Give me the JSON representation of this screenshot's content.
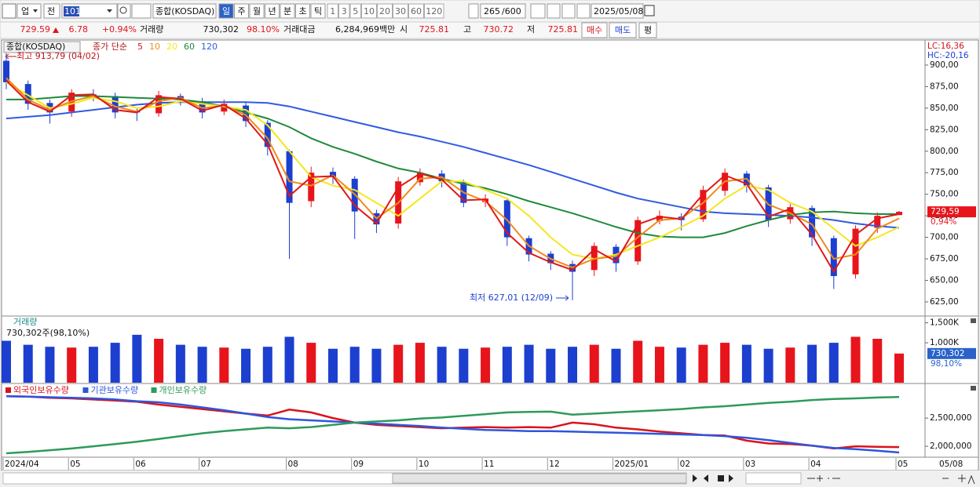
{
  "toolbar": {
    "market": "업",
    "prev": "전",
    "code": "101",
    "name": "종합(KOSDAQ)",
    "periods": [
      "일",
      "주",
      "월",
      "년",
      "분",
      "초",
      "틱"
    ],
    "intervals": [
      "1",
      "3",
      "5",
      "10",
      "20",
      "30",
      "60",
      "120"
    ],
    "count": "265",
    "max": "/600",
    "date": "2025/05/08"
  },
  "quote": {
    "price": "729.59",
    "change": "6.78",
    "pct": "+0.94%",
    "vol_label": "거래량",
    "volume": "730,302",
    "vol_ratio": "98.10%",
    "amount_label": "거래대금",
    "amount": "6,284,969백만",
    "open_label": "시",
    "open": "725.81",
    "high_label": "고",
    "high": "730.72",
    "low_label": "저",
    "low": "725.81",
    "buy": "매수",
    "sell": "매도",
    "avg": "평"
  },
  "chart_data": [
    {
      "type": "candlestick",
      "title": "종합(KOSDAQ)",
      "subtitle": "종가 단순",
      "categories": [
        "2024/04",
        null,
        null,
        "05",
        null,
        null,
        "06",
        null,
        null,
        "07",
        null,
        null,
        null,
        "08",
        null,
        null,
        "09",
        null,
        null,
        "10",
        null,
        null,
        "11",
        null,
        null,
        "12",
        null,
        null,
        "2025/01",
        null,
        null,
        "02",
        null,
        null,
        "03",
        null,
        null,
        "04",
        null,
        null,
        null,
        "05"
      ],
      "open": [
        905,
        878,
        856,
        846,
        866,
        864,
        846,
        844,
        864,
        858,
        846,
        853,
        833,
        800,
        742,
        776,
        768,
        728,
        716,
        764,
        774,
        764,
        741,
        743,
        699,
        681,
        669,
        662,
        689,
        672,
        719,
        724,
        721,
        754,
        774,
        758,
        721,
        734,
        699,
        657,
        711,
        725.81
      ],
      "high": [
        913.79,
        882,
        860,
        872,
        872,
        868,
        850,
        870,
        867,
        862,
        860,
        857,
        836,
        802,
        782,
        781,
        771,
        732,
        770,
        780,
        778,
        767,
        750,
        746,
        702,
        684,
        673,
        694,
        692,
        724,
        731,
        728,
        760,
        780,
        777,
        761,
        739,
        737,
        702,
        714,
        729,
        730.72
      ],
      "low": [
        872,
        848,
        832,
        840,
        858,
        838,
        835,
        840,
        853,
        838,
        842,
        828,
        795,
        675,
        735,
        762,
        698,
        705,
        710,
        760,
        758,
        735,
        735,
        690,
        672,
        662,
        627.01,
        655,
        660,
        668,
        715,
        708,
        718,
        748,
        752,
        712,
        716,
        690,
        640,
        652,
        705,
        725.81
      ],
      "close": [
        880,
        855,
        845,
        868,
        865,
        845,
        845,
        865,
        860,
        845,
        855,
        835,
        805,
        740,
        775,
        770,
        730,
        715,
        765,
        775,
        765,
        740,
        745,
        700,
        680,
        670,
        660,
        690,
        670,
        720,
        725,
        720,
        755,
        775,
        760,
        720,
        735,
        700,
        655,
        710,
        725,
        729.59
      ],
      "up_color": "#e8141b",
      "down_color": "#1c3fd0",
      "series": [
        {
          "name": "5",
          "color": "#e01818",
          "values": [
            882,
            857,
            846,
            865,
            866,
            848,
            845,
            863,
            861,
            847,
            854,
            838,
            808,
            748,
            770,
            771,
            737,
            716,
            758,
            774,
            767,
            743,
            744,
            705,
            682,
            671,
            662,
            686,
            672,
            715,
            724,
            721,
            750,
            772,
            762,
            724,
            733,
            703,
            660,
            703,
            722,
            727
          ]
        },
        {
          "name": "10",
          "color": "#f08a1c",
          "values": [
            885,
            860,
            848,
            858,
            864,
            852,
            846,
            858,
            862,
            850,
            853,
            842,
            815,
            765,
            760,
            772,
            750,
            722,
            740,
            768,
            770,
            752,
            742,
            720,
            690,
            675,
            665,
            675,
            678,
            700,
            720,
            722,
            740,
            765,
            768,
            738,
            728,
            715,
            675,
            680,
            710,
            722
          ]
        },
        {
          "name": "20",
          "color": "#f5e61e",
          "values": [
            880,
            865,
            850,
            855,
            862,
            858,
            850,
            852,
            858,
            855,
            852,
            848,
            830,
            800,
            770,
            760,
            755,
            740,
            725,
            745,
            765,
            765,
            755,
            745,
            725,
            700,
            680,
            675,
            680,
            690,
            700,
            712,
            725,
            745,
            760,
            755,
            740,
            730,
            710,
            690,
            700,
            712
          ]
        },
        {
          "name": "60",
          "color": "#1f8a3a",
          "values": [
            860,
            860,
            862,
            864,
            864,
            863,
            862,
            861,
            860,
            857,
            852,
            845,
            838,
            828,
            815,
            805,
            797,
            788,
            780,
            775,
            768,
            762,
            757,
            750,
            742,
            735,
            728,
            720,
            712,
            705,
            701,
            700,
            700,
            705,
            713,
            720,
            726,
            729,
            730,
            728,
            727,
            727
          ]
        },
        {
          "name": "120",
          "color": "#2f5be0",
          "values": [
            838,
            840,
            842,
            845,
            848,
            851,
            854,
            856,
            857,
            857,
            857,
            857,
            856,
            852,
            846,
            840,
            834,
            828,
            822,
            817,
            811,
            805,
            798,
            791,
            784,
            776,
            768,
            760,
            752,
            745,
            740,
            735,
            730,
            728,
            727,
            726,
            725,
            723,
            720,
            716,
            713,
            711
          ]
        }
      ],
      "ylim": [
        609.5,
        928.2
      ],
      "yticks": [
        {
          "value": 625,
          "label": "625,00"
        },
        {
          "value": 650,
          "label": "650,00"
        },
        {
          "value": 675,
          "label": "675,00"
        },
        {
          "value": 700,
          "label": "700,00"
        },
        {
          "value": 725,
          "label": "725,00"
        },
        {
          "value": 750,
          "label": "750,00"
        },
        {
          "value": 775,
          "label": "775,00"
        },
        {
          "value": 800,
          "label": "800,00"
        },
        {
          "value": 825,
          "label": "825,00"
        },
        {
          "value": 850,
          "label": "850,00"
        },
        {
          "value": 875,
          "label": "875,00"
        },
        {
          "value": 900,
          "label": "900,00"
        }
      ],
      "annotations": [
        {
          "text": "최고 913,79 (04/02)"
        },
        {
          "text": "최저 627,01 (12/09)"
        }
      ],
      "last_label": "729,59",
      "last_change": "0,94%",
      "lc": "LC:16,36",
      "hc": "HC:-20,16",
      "x_end_label": "05/08"
    },
    {
      "type": "bar",
      "title": "거래량",
      "subtitle": "730,302주(98,10%)",
      "values": [
        1050000,
        950000,
        900000,
        880000,
        900000,
        1000000,
        1200000,
        1100000,
        950000,
        900000,
        880000,
        850000,
        900000,
        1150000,
        1000000,
        850000,
        900000,
        850000,
        950000,
        1000000,
        900000,
        850000,
        880000,
        900000,
        950000,
        850000,
        900000,
        950000,
        850000,
        1050000,
        900000,
        880000,
        950000,
        1000000,
        950000,
        850000,
        880000,
        950000,
        1000000,
        1150000,
        1100000,
        730302
      ],
      "ylim": [
        0,
        1650000
      ],
      "yticks": [
        {
          "value": 1000000,
          "label": "1,000K"
        },
        {
          "value": 1500000,
          "label": "1,500K"
        }
      ],
      "last_label": "730,302",
      "last_ratio": "98,10%"
    },
    {
      "type": "line",
      "series": [
        {
          "name": "외국인보유수량",
          "color": "#d9141c",
          "values": [
            2889000,
            2880000,
            2860000,
            2850000,
            2830000,
            2810000,
            2790000,
            2740000,
            2700000,
            2660000,
            2620000,
            2580000,
            2545000,
            2650000,
            2600000,
            2500000,
            2420000,
            2380000,
            2360000,
            2340000,
            2320000,
            2330000,
            2340000,
            2330000,
            2340000,
            2330000,
            2420000,
            2390000,
            2330000,
            2300000,
            2260000,
            2230000,
            2200000,
            2190000,
            2100000,
            2050000,
            2040000,
            2010000,
            1960000,
            2000000,
            1990000,
            1986000
          ]
        },
        {
          "name": "기관보유수량",
          "color": "#2f55dc",
          "values": [
            2889000,
            2880000,
            2870000,
            2860000,
            2850000,
            2830000,
            2800000,
            2780000,
            2740000,
            2690000,
            2640000,
            2580000,
            2520000,
            2480000,
            2460000,
            2440000,
            2420000,
            2400000,
            2380000,
            2360000,
            2330000,
            2310000,
            2290000,
            2280000,
            2270000,
            2270000,
            2260000,
            2250000,
            2240000,
            2230000,
            2220000,
            2210000,
            2200000,
            2180000,
            2150000,
            2110000,
            2060000,
            2010000,
            1970000,
            1950000,
            1920000,
            1889000
          ]
        },
        {
          "name": "개인보유수량",
          "color": "#2e9a5a",
          "values": [
            1875000,
            1900000,
            1930000,
            1960000,
            2000000,
            2040000,
            2080000,
            2130000,
            2180000,
            2230000,
            2270000,
            2300000,
            2330000,
            2320000,
            2340000,
            2380000,
            2420000,
            2440000,
            2460000,
            2490000,
            2510000,
            2540000,
            2570000,
            2600000,
            2610000,
            2615000,
            2560000,
            2580000,
            2600000,
            2620000,
            2640000,
            2660000,
            2690000,
            2710000,
            2740000,
            2770000,
            2790000,
            2820000,
            2840000,
            2850000,
            2865000,
            2875000
          ]
        }
      ],
      "ylim": [
        1820000,
        3100000
      ],
      "yticks": [
        {
          "value": 2000000,
          "label": "2,000,000"
        },
        {
          "value": 2500000,
          "label": "2,500,000"
        }
      ]
    }
  ]
}
